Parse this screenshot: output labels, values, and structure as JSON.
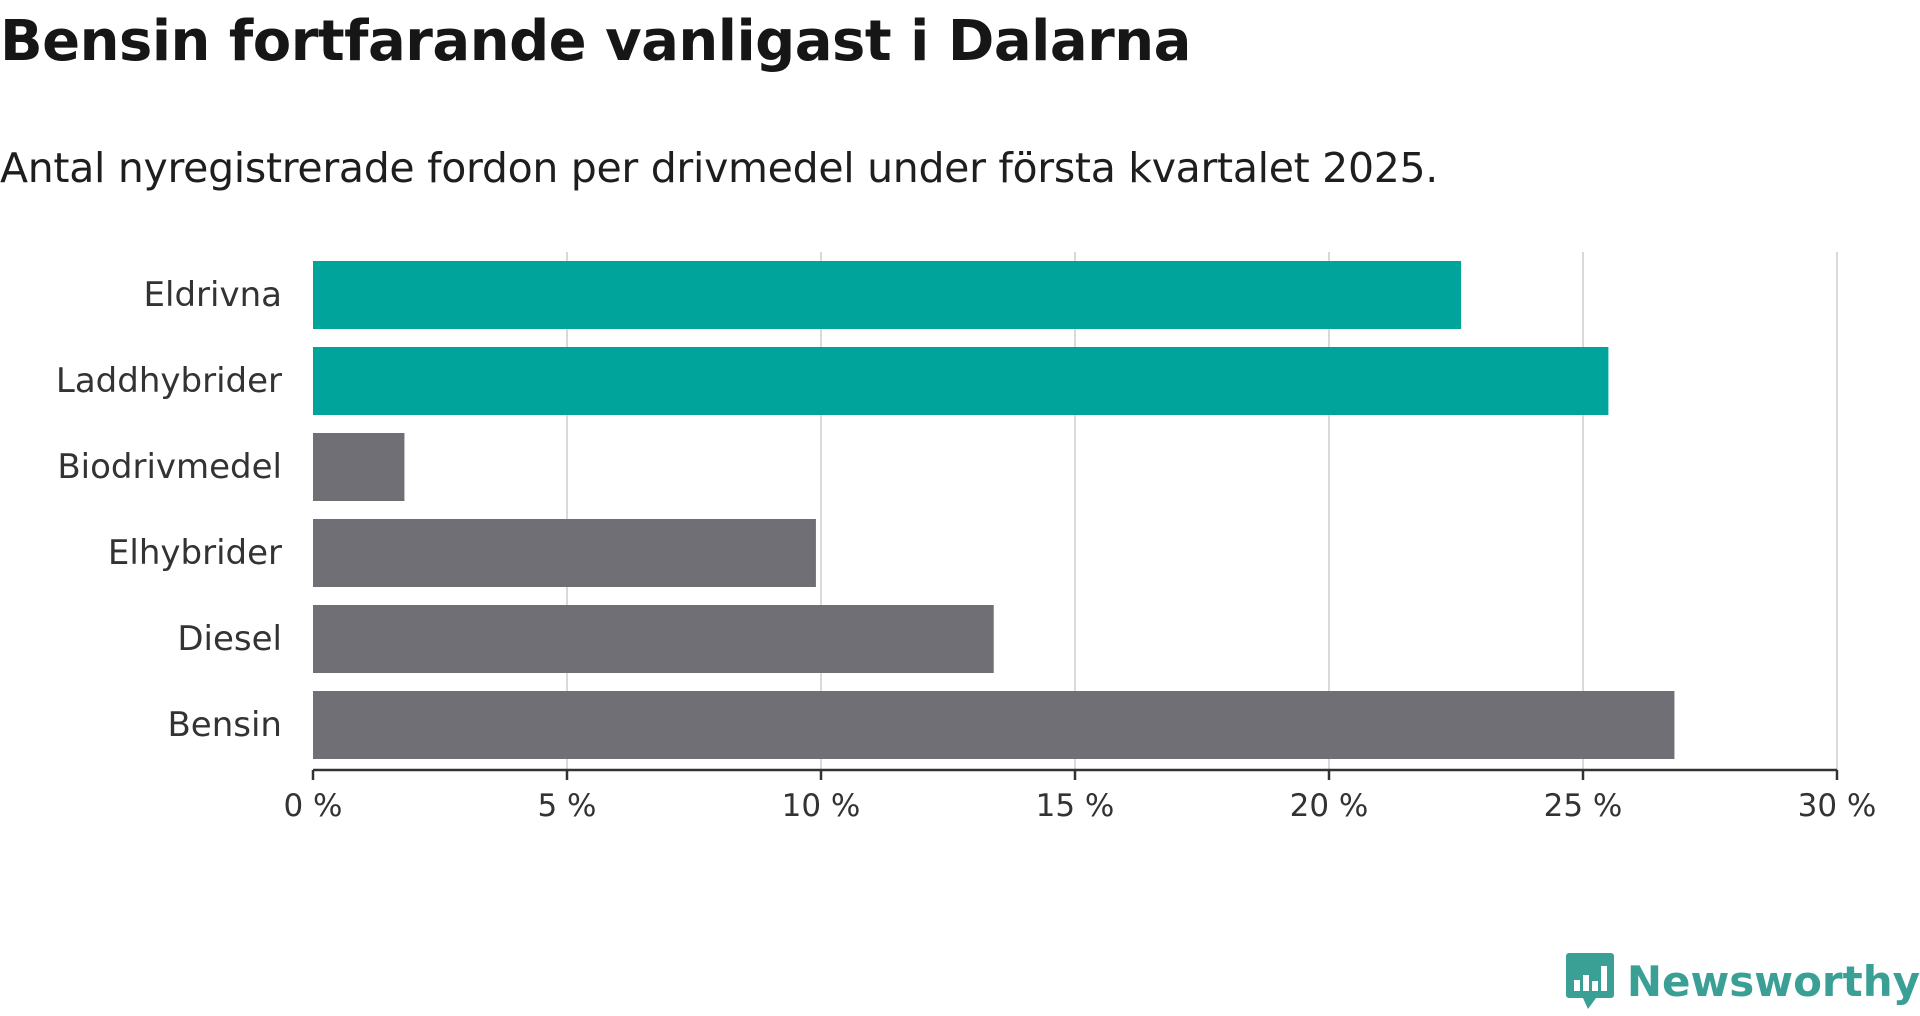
{
  "title": "Bensin fortfarande vanligast i Dalarna",
  "subtitle": "Antal nyregistrerade fordon per drivmedel under första kvartalet 2025.",
  "brand": {
    "name": "Newsworthy",
    "icon": "newsworthy-logo-icon",
    "color": "#3a9f95"
  },
  "colors": {
    "highlight": "#00a49b",
    "default": "#706f75",
    "grid": "#d9d9d9",
    "axis": "#333333"
  },
  "chart_data": {
    "type": "bar",
    "orientation": "horizontal",
    "title": "Bensin fortfarande vanligast i Dalarna",
    "subtitle": "Antal nyregistrerade fordon per drivmedel under första kvartalet 2025.",
    "categories": [
      "Eldrivna",
      "Laddhybrider",
      "Biodrivmedel",
      "Elhybrider",
      "Diesel",
      "Bensin"
    ],
    "values": [
      22.6,
      25.5,
      1.8,
      9.9,
      13.4,
      26.8
    ],
    "highlighted": [
      true,
      true,
      false,
      false,
      false,
      false
    ],
    "xlim": [
      0,
      30
    ],
    "xticks": [
      0,
      5,
      10,
      15,
      20,
      25,
      30
    ],
    "xtick_labels": [
      "0 %",
      "5 %",
      "10 %",
      "15 %",
      "20 %",
      "25 %",
      "30 %"
    ],
    "unit": "%",
    "xlabel": "",
    "ylabel": "",
    "grid": "vertical",
    "legend": "none"
  }
}
